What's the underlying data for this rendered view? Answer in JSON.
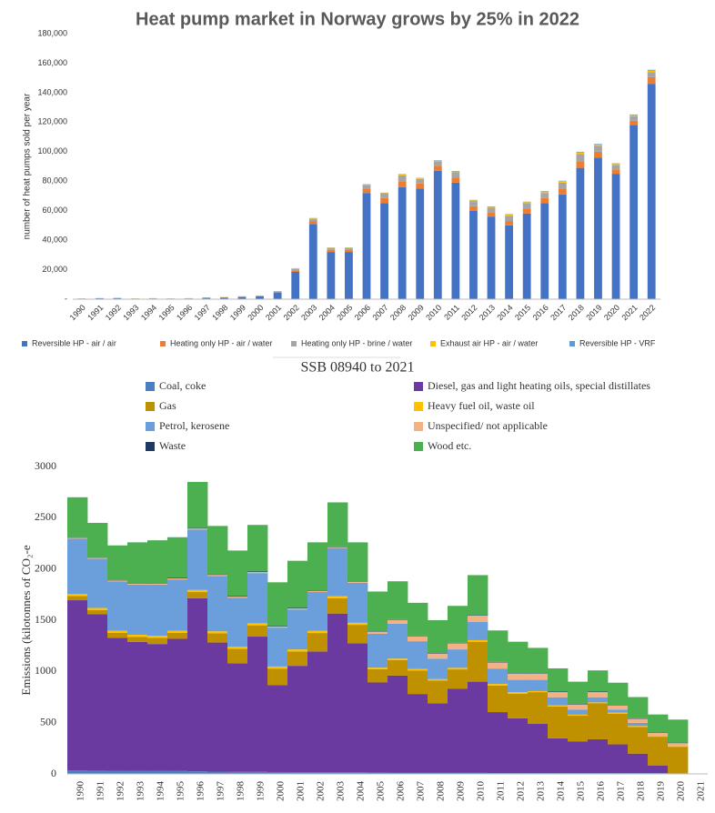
{
  "chart_data": [
    {
      "type": "bar",
      "stacked": true,
      "title": "Heat pump market in Norway grows by 25% in 2022",
      "ylabel": "number of heat pumps sold per year",
      "legend": "bottom",
      "grid": false,
      "categories": [
        "1990",
        "1991",
        "1992",
        "1993",
        "1994",
        "1995",
        "1996",
        "1997",
        "1998",
        "1999",
        "2000",
        "2001",
        "2002",
        "2003",
        "2004",
        "2005",
        "2006",
        "2007",
        "2008",
        "2009",
        "2010",
        "2011",
        "2012",
        "2013",
        "2014",
        "2015",
        "2016",
        "2017",
        "2018",
        "2019",
        "2020",
        "2021",
        "2022"
      ],
      "ylim": [
        0,
        180000
      ],
      "yticks": [
        {
          "value": 0,
          "label": "-"
        },
        {
          "value": 20000,
          "label": "20,000"
        },
        {
          "value": 40000,
          "label": "40,000"
        },
        {
          "value": 60000,
          "label": "60,000"
        },
        {
          "value": 80000,
          "label": "80,000"
        },
        {
          "value": 100000,
          "label": "100,000"
        },
        {
          "value": 120000,
          "label": "120,000"
        },
        {
          "value": 140000,
          "label": "140,000"
        },
        {
          "value": 160000,
          "label": "160,000"
        },
        {
          "value": 180000,
          "label": "180,000"
        }
      ],
      "series": [
        {
          "name": "Reversible HP - air / air",
          "color": "#4472c4",
          "values": [
            400,
            600,
            700,
            400,
            500,
            400,
            500,
            900,
            1100,
            1500,
            2000,
            4500,
            18500,
            51000,
            32000,
            32000,
            72000,
            65000,
            76000,
            75000,
            87000,
            79000,
            60000,
            56000,
            50000,
            58000,
            65000,
            71000,
            89000,
            96000,
            85000,
            118000,
            146000
          ]
        },
        {
          "name": "Heating only HP - air / water",
          "color": "#ed7d31",
          "values": [
            50,
            50,
            50,
            50,
            50,
            50,
            50,
            100,
            100,
            150,
            200,
            400,
            1000,
            2000,
            1500,
            1500,
            3000,
            3500,
            4000,
            3500,
            3500,
            3500,
            3000,
            3000,
            3000,
            3500,
            3500,
            4000,
            4500,
            4000,
            3000,
            3000,
            4500
          ]
        },
        {
          "name": "Heating only HP - brine / water",
          "color": "#a5a5a5",
          "values": [
            50,
            100,
            100,
            100,
            100,
            100,
            100,
            100,
            150,
            200,
            200,
            400,
            1000,
            1500,
            1000,
            1000,
            2500,
            3000,
            4000,
            3000,
            3000,
            3500,
            3500,
            3000,
            3500,
            3500,
            3500,
            4000,
            5000,
            4000,
            3000,
            3000,
            3500
          ]
        },
        {
          "name": "Exhaust air HP - air / water",
          "color": "#ffc000",
          "values": [
            0,
            50,
            150,
            50,
            50,
            50,
            50,
            100,
            150,
            150,
            100,
            100,
            300,
            300,
            300,
            300,
            300,
            400,
            500,
            400,
            400,
            600,
            500,
            600,
            800,
            800,
            1000,
            1000,
            1000,
            900,
            700,
            800,
            1000
          ]
        },
        {
          "name": "Reversible HP - VRF",
          "color": "#5b9bd5",
          "values": [
            0,
            0,
            0,
            0,
            0,
            0,
            0,
            0,
            0,
            0,
            0,
            100,
            200,
            200,
            200,
            200,
            200,
            300,
            300,
            300,
            300,
            300,
            300,
            300,
            300,
            300,
            300,
            300,
            400,
            400,
            400,
            400,
            500
          ]
        }
      ]
    },
    {
      "type": "bar",
      "stacked": true,
      "title": "SSB 08940 to 2021",
      "ylabel": "Emissions (kilotonnes of CO₂-e",
      "legend": "top",
      "grid": false,
      "categories": [
        "1990",
        "1991",
        "1992",
        "1993",
        "1994",
        "1995",
        "1996",
        "1997",
        "1998",
        "1999",
        "2000",
        "2001",
        "2002",
        "2003",
        "2004",
        "2005",
        "2006",
        "2007",
        "2008",
        "2009",
        "2010",
        "2011",
        "2012",
        "2013",
        "2014",
        "2015",
        "2016",
        "2017",
        "2018",
        "2019",
        "2020",
        "2021"
      ],
      "ylim": [
        0,
        3000
      ],
      "yticks": [
        0,
        500,
        1000,
        1500,
        2000,
        2500,
        3000
      ],
      "series": [
        {
          "name": "Coal, coke",
          "color": "#4a7fc1",
          "values": [
            35,
            30,
            28,
            28,
            28,
            28,
            25,
            22,
            20,
            20,
            18,
            15,
            15,
            15,
            15,
            12,
            10,
            10,
            10,
            10,
            10,
            8,
            8,
            8,
            8,
            8,
            8,
            8,
            8,
            8,
            5,
            null
          ]
        },
        {
          "name": "Diesel, gas and light heating oils, special distillates",
          "color": "#6b3aa0",
          "values": [
            1660,
            1530,
            1300,
            1260,
            1240,
            1290,
            1690,
            1260,
            1060,
            1320,
            850,
            1040,
            1180,
            1550,
            1260,
            880,
            950,
            770,
            680,
            820,
            890,
            595,
            535,
            480,
            340,
            310,
            330,
            280,
            190,
            75,
            0,
            null
          ]
        },
        {
          "name": "Gas",
          "color": "#bf9000",
          "values": [
            40,
            40,
            50,
            50,
            60,
            60,
            60,
            90,
            140,
            110,
            160,
            140,
            180,
            150,
            180,
            130,
            150,
            230,
            220,
            190,
            390,
            260,
            240,
            310,
            310,
            250,
            350,
            300,
            260,
            280,
            260,
            null
          ]
        },
        {
          "name": "Heavy fuel oil, waste oil",
          "color": "#ffc000",
          "values": [
            20,
            20,
            20,
            20,
            20,
            20,
            20,
            20,
            20,
            20,
            20,
            20,
            20,
            20,
            20,
            15,
            15,
            15,
            15,
            15,
            15,
            15,
            15,
            10,
            10,
            10,
            10,
            10,
            10,
            10,
            5,
            null
          ]
        },
        {
          "name": "Petrol, kerosene",
          "color": "#6a9fdb",
          "values": [
            540,
            480,
            480,
            490,
            500,
            500,
            590,
            540,
            480,
            490,
            380,
            390,
            380,
            470,
            390,
            330,
            340,
            270,
            200,
            180,
            180,
            150,
            120,
            110,
            80,
            50,
            50,
            30,
            30,
            0,
            0,
            null
          ]
        },
        {
          "name": "Unspecified/ not applicable",
          "color": "#f4b183",
          "values": [
            10,
            10,
            10,
            10,
            10,
            10,
            10,
            10,
            10,
            10,
            10,
            10,
            10,
            10,
            10,
            20,
            40,
            50,
            50,
            60,
            60,
            60,
            60,
            60,
            50,
            50,
            50,
            40,
            40,
            30,
            30,
            null
          ]
        },
        {
          "name": "Waste",
          "color": "#1f3864",
          "values": [
            5,
            5,
            5,
            5,
            5,
            5,
            5,
            5,
            5,
            5,
            5,
            5,
            5,
            5,
            5,
            5,
            5,
            5,
            5,
            5,
            5,
            5,
            5,
            5,
            5,
            5,
            5,
            5,
            5,
            5,
            5,
            null
          ]
        },
        {
          "name": "Wood etc.",
          "color": "#4caf50",
          "values": [
            390,
            335,
            337,
            397,
            417,
            397,
            450,
            473,
            445,
            455,
            427,
            460,
            470,
            430,
            380,
            388,
            370,
            320,
            320,
            360,
            390,
            307,
            307,
            247,
            227,
            217,
            207,
            217,
            207,
            172,
            225,
            null
          ]
        }
      ]
    }
  ]
}
